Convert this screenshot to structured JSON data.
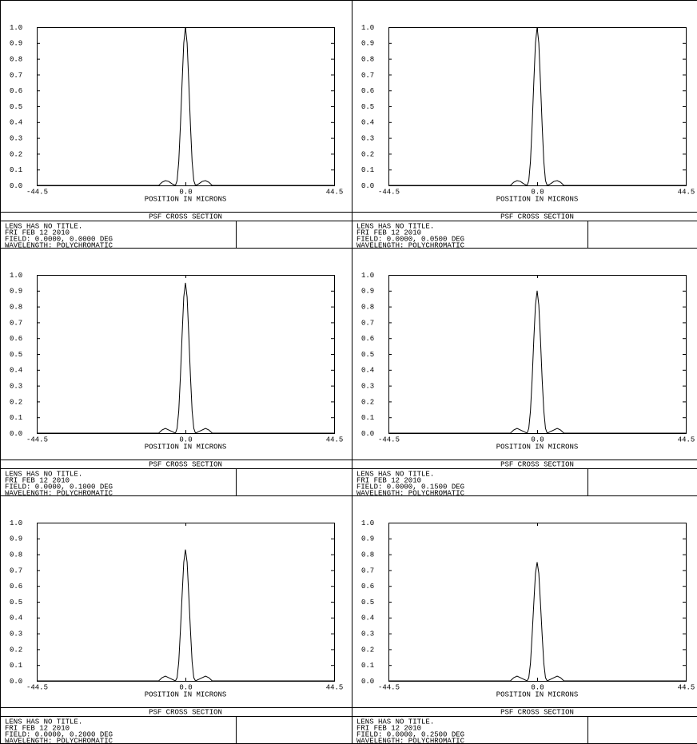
{
  "chart_data": [
    {
      "type": "line",
      "title": "PSF CROSS SECTION",
      "x_label": "POSITION IN MICRONS",
      "notes": [
        "LENS HAS NO TITLE.",
        "FRI FEB 12 2010",
        "FIELD: 0.0000, 0.0000 DEG",
        "WAVELENGTH: POLYCHROMATIC"
      ],
      "x": [
        -44.5,
        -10,
        -8,
        -7,
        -6,
        -5,
        -4,
        -3,
        -2.5,
        -2,
        -1.5,
        -1,
        -0.5,
        0,
        0.5,
        1,
        1.5,
        2,
        2.5,
        3,
        4,
        5,
        6,
        7,
        8,
        10,
        44.5
      ],
      "values": [
        0,
        0,
        0,
        0.02,
        0.03,
        0.025,
        0.01,
        0,
        0.03,
        0.15,
        0.38,
        0.65,
        0.9,
        1,
        0.9,
        0.65,
        0.38,
        0.15,
        0.03,
        0,
        0.01,
        0.025,
        0.03,
        0.02,
        0,
        0,
        0
      ],
      "color": "#000000",
      "xlim": [
        -44.5,
        44.5
      ],
      "ylim": [
        0,
        1
      ],
      "xticks": [
        -44.5,
        {
          "value": 0,
          "label": "0.0"
        },
        44.5
      ],
      "yticks": [
        {
          "value": 0,
          "label": "0.0"
        },
        0.1,
        0.2,
        0.3,
        0.4,
        0.5,
        0.6,
        0.7,
        0.8,
        0.9,
        {
          "value": 1,
          "label": "1.0"
        }
      ]
    },
    {
      "type": "line",
      "title": "PSF CROSS SECTION",
      "x_label": "POSITION IN MICRONS",
      "notes": [
        "LENS HAS NO TITLE.",
        "FRI FEB 12 2010",
        "FIELD: 0.0000, 0.0500 DEG",
        "WAVELENGTH: POLYCHROMATIC"
      ],
      "x": [
        -44.5,
        -10,
        -8,
        -7,
        -6,
        -5,
        -4,
        -3,
        -2.5,
        -2,
        -1.5,
        -1,
        -0.5,
        0,
        0.5,
        1,
        1.5,
        2,
        2.5,
        3,
        4,
        5,
        6,
        7,
        8,
        10,
        44.5
      ],
      "values": [
        0,
        0,
        0,
        0.02,
        0.03,
        0.025,
        0.01,
        0,
        0.03,
        0.15,
        0.38,
        0.65,
        0.9,
        1,
        0.9,
        0.65,
        0.38,
        0.15,
        0.03,
        0,
        0.01,
        0.025,
        0.03,
        0.02,
        0,
        0,
        0
      ],
      "color": "#000000",
      "xlim": [
        -44.5,
        44.5
      ],
      "ylim": [
        0,
        1
      ],
      "xticks": [
        -44.5,
        {
          "value": 0,
          "label": "0.0"
        },
        44.5
      ],
      "yticks": [
        {
          "value": 0,
          "label": "0.0"
        },
        0.1,
        0.2,
        0.3,
        0.4,
        0.5,
        0.6,
        0.7,
        0.8,
        0.9,
        {
          "value": 1,
          "label": "1.0"
        }
      ]
    },
    {
      "type": "line",
      "title": "PSF CROSS SECTION",
      "x_label": "POSITION IN MICRONS",
      "notes": [
        "LENS HAS NO TITLE.",
        "FRI FEB 12 2010",
        "FIELD: 0.0000, 0.1000 DEG",
        "WAVELENGTH: POLYCHROMATIC"
      ],
      "x": [
        -44.5,
        -10,
        -8,
        -7,
        -6,
        -5,
        -4,
        -3,
        -2.5,
        -2,
        -1.5,
        -1,
        -0.5,
        0,
        0.5,
        1,
        1.5,
        2,
        2.5,
        3,
        4,
        5,
        6,
        7,
        8,
        10,
        44.5
      ],
      "values": [
        0,
        0,
        0,
        0.02,
        0.03,
        0.02,
        0.01,
        0,
        0.03,
        0.14,
        0.36,
        0.62,
        0.86,
        0.95,
        0.86,
        0.62,
        0.36,
        0.14,
        0.03,
        0,
        0.01,
        0.02,
        0.03,
        0.02,
        0,
        0,
        0
      ],
      "color": "#000000",
      "xlim": [
        -44.5,
        44.5
      ],
      "ylim": [
        0,
        1
      ],
      "xticks": [
        -44.5,
        {
          "value": 0,
          "label": "0.0"
        },
        44.5
      ],
      "yticks": [
        {
          "value": 0,
          "label": "0.0"
        },
        0.1,
        0.2,
        0.3,
        0.4,
        0.5,
        0.6,
        0.7,
        0.8,
        0.9,
        {
          "value": 1,
          "label": "1.0"
        }
      ]
    },
    {
      "type": "line",
      "title": "PSF CROSS SECTION",
      "x_label": "POSITION IN MICRONS",
      "notes": [
        "LENS HAS NO TITLE.",
        "FRI FEB 12 2010",
        "FIELD: 0.0000, 0.1500 DEG",
        "WAVELENGTH: POLYCHROMATIC"
      ],
      "x": [
        -44.5,
        -10,
        -8,
        -7,
        -6,
        -5,
        -4,
        -3,
        -2.5,
        -2,
        -1.5,
        -1,
        -0.5,
        0,
        0.5,
        1,
        1.5,
        2,
        2.5,
        3,
        4,
        5,
        6,
        7,
        8,
        10,
        44.5
      ],
      "values": [
        0,
        0,
        0,
        0.02,
        0.03,
        0.02,
        0.01,
        0,
        0.03,
        0.14,
        0.34,
        0.59,
        0.81,
        0.9,
        0.81,
        0.59,
        0.34,
        0.14,
        0.03,
        0,
        0.01,
        0.02,
        0.03,
        0.02,
        0,
        0,
        0
      ],
      "color": "#000000",
      "xlim": [
        -44.5,
        44.5
      ],
      "ylim": [
        0,
        1
      ],
      "xticks": [
        -44.5,
        {
          "value": 0,
          "label": "0.0"
        },
        44.5
      ],
      "yticks": [
        {
          "value": 0,
          "label": "0.0"
        },
        0.1,
        0.2,
        0.3,
        0.4,
        0.5,
        0.6,
        0.7,
        0.8,
        0.9,
        {
          "value": 1,
          "label": "1.0"
        }
      ]
    },
    {
      "type": "line",
      "title": "PSF CROSS SECTION",
      "x_label": "POSITION IN MICRONS",
      "notes": [
        "LENS HAS NO TITLE.",
        "FRI FEB 12 2010",
        "FIELD: 0.0000, 0.2000 DEG",
        "WAVELENGTH: POLYCHROMATIC"
      ],
      "x": [
        -44.5,
        -10,
        -8,
        -7,
        -6,
        -5,
        -4,
        -3,
        -2.5,
        -2,
        -1.5,
        -1,
        -0.5,
        0,
        0.5,
        1,
        1.5,
        2,
        2.5,
        3,
        4,
        5,
        6,
        7,
        8,
        10,
        44.5
      ],
      "values": [
        0,
        0,
        0,
        0.02,
        0.03,
        0.02,
        0.01,
        0,
        0.02,
        0.12,
        0.32,
        0.54,
        0.75,
        0.83,
        0.75,
        0.54,
        0.32,
        0.12,
        0.02,
        0,
        0.01,
        0.02,
        0.03,
        0.02,
        0,
        0,
        0
      ],
      "color": "#000000",
      "xlim": [
        -44.5,
        44.5
      ],
      "ylim": [
        0,
        1
      ],
      "xticks": [
        -44.5,
        {
          "value": 0,
          "label": "0.0"
        },
        44.5
      ],
      "yticks": [
        {
          "value": 0,
          "label": "0.0"
        },
        0.1,
        0.2,
        0.3,
        0.4,
        0.5,
        0.6,
        0.7,
        0.8,
        0.9,
        {
          "value": 1,
          "label": "1.0"
        }
      ]
    },
    {
      "type": "line",
      "title": "PSF CROSS SECTION",
      "x_label": "POSITION IN MICRONS",
      "notes": [
        "LENS HAS NO TITLE.",
        "FRI FEB 12 2010",
        "FIELD: 0.0000, 0.2500 DEG",
        "WAVELENGTH: POLYCHROMATIC"
      ],
      "x": [
        -44.5,
        -10,
        -8,
        -7,
        -6,
        -5,
        -4,
        -3,
        -2.5,
        -2,
        -1.5,
        -1,
        -0.5,
        0,
        0.5,
        1,
        1.5,
        2,
        2.5,
        3,
        4,
        5,
        6,
        7,
        8,
        10,
        44.5
      ],
      "values": [
        0,
        0,
        0,
        0.02,
        0.03,
        0.02,
        0.01,
        0,
        0.02,
        0.11,
        0.29,
        0.49,
        0.68,
        0.75,
        0.68,
        0.49,
        0.29,
        0.11,
        0.02,
        0,
        0.01,
        0.02,
        0.03,
        0.02,
        0,
        0,
        0
      ],
      "color": "#000000",
      "xlim": [
        -44.5,
        44.5
      ],
      "ylim": [
        0,
        1
      ],
      "xticks": [
        -44.5,
        {
          "value": 0,
          "label": "0.0"
        },
        44.5
      ],
      "yticks": [
        {
          "value": 0,
          "label": "0.0"
        },
        0.1,
        0.2,
        0.3,
        0.4,
        0.5,
        0.6,
        0.7,
        0.8,
        0.9,
        {
          "value": 1,
          "label": "1.0"
        }
      ]
    }
  ]
}
